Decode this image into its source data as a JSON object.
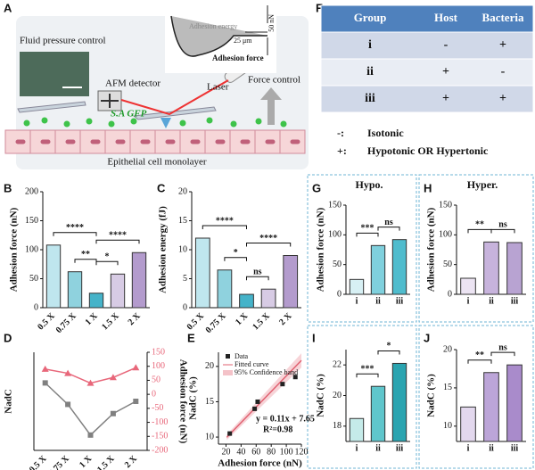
{
  "panel_a": {
    "letter": "A",
    "fluid": "Fluid pressure control",
    "adh_energy": "Adhesion energy",
    "adh_force": "Adhesion force",
    "scale_force": "50 nN",
    "scale_length": "25 μm",
    "detector": "AFM detector",
    "laser": "Laser",
    "force_control": "Force control",
    "bacteria": "S.A GFP",
    "cells": "Epithelial cell monolayer"
  },
  "panel_f": {
    "letter": "F",
    "table": {
      "header": [
        "Group",
        "Host",
        "Bacteria"
      ],
      "rows": [
        [
          "i",
          "-",
          "+"
        ],
        [
          "ii",
          "+",
          "-"
        ],
        [
          "iii",
          "+",
          "+"
        ]
      ]
    },
    "legend": [
      {
        "symbol": "-:",
        "text": "Isotonic"
      },
      {
        "symbol": "+:",
        "text": "Hypotonic OR Hypertonic"
      }
    ]
  },
  "chart_data": [
    {
      "type": "bar",
      "letter": "B",
      "ylabel": "Adhesion force (nN)",
      "categories": [
        "0.5 X",
        "0.75 X",
        "1 X",
        "1.5 X",
        "2 X"
      ],
      "values": [
        108,
        62,
        25,
        58,
        95
      ],
      "colors": [
        "#bfe6ee",
        "#8fd2de",
        "#45b3c9",
        "#d7cbe4",
        "#b39bcd"
      ],
      "ylim": [
        0,
        200
      ],
      "yticks": [
        0,
        50,
        100,
        150,
        200
      ],
      "significance": [
        {
          "between": [
            1,
            2
          ],
          "label": "**"
        },
        {
          "between": [
            2,
            3
          ],
          "label": "*"
        },
        {
          "between": [
            0,
            2
          ],
          "label": "****"
        },
        {
          "between": [
            2,
            4
          ],
          "label": "****"
        }
      ]
    },
    {
      "type": "bar",
      "letter": "C",
      "ylabel": "Adhesion energy (fJ)",
      "categories": [
        "0.5 X",
        "0.75 X",
        "1 X",
        "1.5 X",
        "2 X"
      ],
      "values": [
        12,
        6.5,
        2.3,
        3.2,
        9
      ],
      "colors": [
        "#bfe6ee",
        "#8fd2de",
        "#45b3c9",
        "#d7cbe4",
        "#b39bcd"
      ],
      "ylim": [
        0,
        20
      ],
      "yticks": [
        0,
        5,
        10,
        15,
        20
      ],
      "significance": [
        {
          "between": [
            1,
            2
          ],
          "label": "*"
        },
        {
          "between": [
            2,
            3
          ],
          "label": "ns"
        },
        {
          "between": [
            0,
            2
          ],
          "label": "****"
        },
        {
          "between": [
            2,
            4
          ],
          "label": "****"
        }
      ]
    },
    {
      "type": "line",
      "letter": "D",
      "ylabel": "NadC",
      "y2label": "Adhesion force (nN)",
      "categories": [
        "0.5 X",
        "0.75 X",
        "1 X",
        "1.5 X",
        "2 X"
      ],
      "series": [
        {
          "name": "NadC",
          "color": "#808080",
          "values": [
            19,
            15.5,
            10.5,
            14,
            16
          ]
        },
        {
          "name": "Adhesion force",
          "color": "#e8677a",
          "axis": "y2",
          "values": [
            90,
            75,
            40,
            60,
            95
          ]
        }
      ],
      "ylim": [
        8,
        24
      ],
      "y2lim": [
        -200,
        150
      ],
      "y2ticks": [
        -200,
        -150,
        -100,
        -50,
        0,
        50,
        100,
        150
      ]
    },
    {
      "type": "scatter",
      "letter": "E",
      "ylabel": "NadC (%)",
      "xlabel": "Adhesion force (nN)",
      "x": [
        25,
        58,
        62,
        95,
        112
      ],
      "series": [
        {
          "name": "Data",
          "color": "#222222",
          "values": [
            10.5,
            14,
            15,
            17.5,
            18.5
          ]
        }
      ],
      "fit": {
        "name": "Fitted curve",
        "color": "#e06070",
        "slope": 0.11,
        "intercept": 7.65
      },
      "band_label": "95% Confidence band",
      "fit_label": "y = 0.11x + 7.65",
      "r2_label": "R²=0.98",
      "xlim": [
        10,
        120
      ],
      "xticks": [
        20,
        40,
        60,
        80,
        100,
        120
      ],
      "ylim": [
        9,
        22
      ],
      "yticks": [
        10,
        15,
        20
      ]
    },
    {
      "type": "bar",
      "letter": "G",
      "title": "Hypo.",
      "ylabel": "Adhesion force (nN)",
      "categories": [
        "i",
        "ii",
        "iii"
      ],
      "values": [
        25,
        82,
        92
      ],
      "colors": [
        "#d7f0f4",
        "#7fd0dd",
        "#4fbccd"
      ],
      "ylim": [
        0,
        150
      ],
      "yticks": [
        0,
        50,
        100,
        150
      ],
      "significance": [
        {
          "between": [
            0,
            1
          ],
          "label": "***"
        },
        {
          "between": [
            1,
            2
          ],
          "label": "ns"
        }
      ]
    },
    {
      "type": "bar",
      "letter": "H",
      "title": "Hyper.",
      "ylabel": "Adhesion force (nN)",
      "categories": [
        "i",
        "ii",
        "iii"
      ],
      "values": [
        27,
        88,
        87
      ],
      "colors": [
        "#ece4f3",
        "#c7b3dc",
        "#b8a3d2"
      ],
      "ylim": [
        0,
        150
      ],
      "yticks": [
        0,
        50,
        100,
        150
      ],
      "significance": [
        {
          "between": [
            0,
            1
          ],
          "label": "**"
        },
        {
          "between": [
            1,
            2
          ],
          "label": "ns"
        }
      ]
    },
    {
      "type": "bar",
      "letter": "I",
      "ylabel": "NadC (%)",
      "categories": [
        "i",
        "ii",
        "iii"
      ],
      "values": [
        18.5,
        20.6,
        22.1
      ],
      "colors": [
        "#c5ebe9",
        "#5fc6cc",
        "#2aa4b0"
      ],
      "ylim": [
        17,
        23
      ],
      "yticks": [
        18,
        20,
        22
      ],
      "significance": [
        {
          "between": [
            0,
            1
          ],
          "label": "***"
        },
        {
          "between": [
            1,
            2
          ],
          "label": "*"
        }
      ]
    },
    {
      "type": "bar",
      "letter": "J",
      "ylabel": "NadC (%)",
      "categories": [
        "i",
        "ii",
        "iii"
      ],
      "values": [
        12.5,
        17,
        18
      ],
      "colors": [
        "#e3d8ee",
        "#bca5d8",
        "#a98bcb"
      ],
      "ylim": [
        8,
        20
      ],
      "yticks": [
        10,
        15,
        20
      ],
      "significance": [
        {
          "between": [
            0,
            1
          ],
          "label": "**"
        },
        {
          "between": [
            1,
            2
          ],
          "label": "ns"
        }
      ]
    }
  ]
}
